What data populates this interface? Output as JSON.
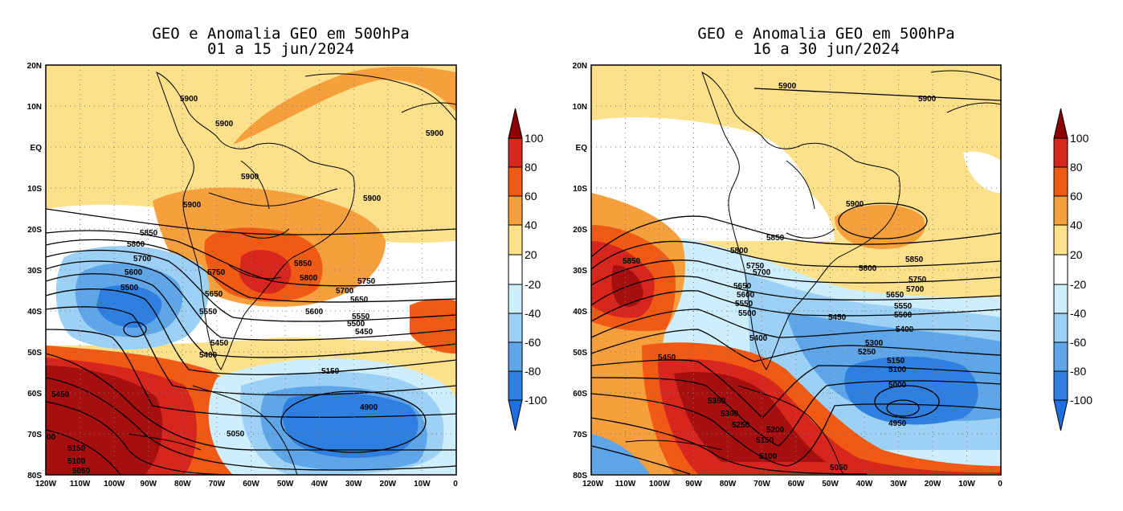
{
  "panels": [
    {
      "title_line1": "GEO e Anomalia GEO em 500hPa",
      "title_line2": "01 a 15 jun/2024",
      "contour_labels": [
        "5900",
        "5900",
        "5900",
        "5900",
        "5900",
        "5900",
        "5850",
        "5800",
        "5700",
        "5600",
        "5500",
        "5750",
        "5650",
        "5550",
        "5450",
        "5400",
        "5850",
        "5800",
        "5750",
        "5700",
        "5650",
        "5600",
        "5550",
        "5500",
        "5450",
        "5150",
        "4900",
        "5050",
        "5450",
        "00",
        "5150",
        "5100",
        "5050"
      ]
    },
    {
      "title_line1": "GEO e Anomalia GEO em 500hPa",
      "title_line2": "16 a 30 jun/2024",
      "contour_labels": [
        "5900",
        "5900",
        "5900",
        "5850",
        "5850",
        "5800",
        "5750",
        "5700",
        "5650",
        "5600",
        "5550",
        "5500",
        "5400",
        "5800",
        "5850",
        "5750",
        "5700",
        "5650",
        "5550",
        "5500",
        "5450",
        "5400",
        "5300",
        "5250",
        "5150",
        "5100",
        "5000",
        "4950",
        "5450",
        "5350",
        "5300",
        "5250",
        "5200",
        "5150",
        "5100",
        "5050"
      ]
    }
  ],
  "axes": {
    "lat_labels": [
      "20N",
      "10N",
      "EQ",
      "10S",
      "20S",
      "30S",
      "40S",
      "50S",
      "60S",
      "70S",
      "80S"
    ],
    "lon_labels": [
      "120W",
      "110W",
      "100W",
      "90W",
      "80W",
      "70W",
      "60W",
      "50W",
      "40W",
      "30W",
      "20W",
      "10W",
      "0"
    ]
  },
  "colorbar": {
    "levels": [
      "100",
      "80",
      "60",
      "40",
      "20",
      "-20",
      "-40",
      "-60",
      "-80",
      "-100"
    ],
    "colors": [
      "#a50f0f",
      "#d7261e",
      "#f05a14",
      "#f5a03c",
      "#fde08a",
      "#ffffff",
      "#cdeefa",
      "#9cd0f5",
      "#5fa6e8",
      "#2f7fe0",
      "#1e5fd0",
      "#8b0000"
    ]
  }
}
